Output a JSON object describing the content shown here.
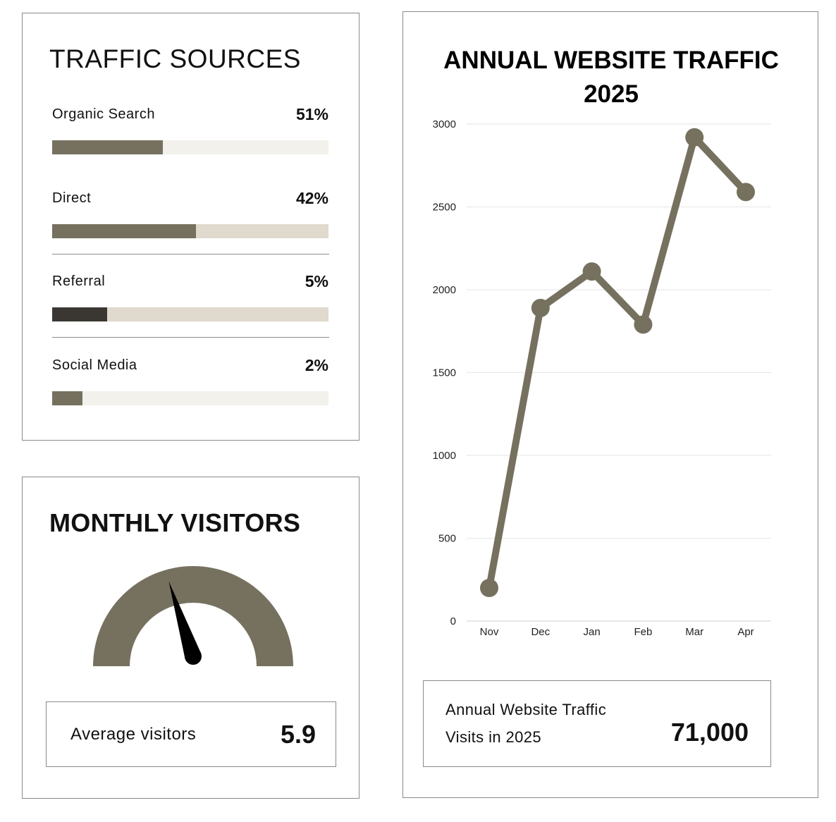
{
  "colors": {
    "primary": "#76715f",
    "dark": "#3a3733",
    "track_light": "#f2f1eb",
    "track_beige": "#e0d9cd",
    "needle": "#000000",
    "grid": "#e6e6e6"
  },
  "traffic_sources": {
    "title": "TRAFFIC SOURCES",
    "items": [
      {
        "label": "Organic Search",
        "value": "51%",
        "fill_fraction": 0.4,
        "fill_color": "#76715f",
        "track_color": "#f2f1eb"
      },
      {
        "label": "Direct",
        "value": "42%",
        "fill_fraction": 0.52,
        "fill_color": "#76715f",
        "track_color": "#e0d9cd"
      },
      {
        "label": "Referral",
        "value": "5%",
        "fill_fraction": 0.2,
        "fill_color": "#3a3733",
        "track_color": "#e0d9cd"
      },
      {
        "label": "Social Media",
        "value": "2%",
        "fill_fraction": 0.11,
        "fill_color": "#76715f",
        "track_color": "#f2f1eb"
      }
    ]
  },
  "monthly_visitors": {
    "title": "MONTHLY VISITORS",
    "gauge_level": 0.4,
    "average": {
      "label": "Average visitors",
      "value": "5.9"
    }
  },
  "chart_data": {
    "type": "line",
    "title": "ANNUAL WEBSITE TRAFFIC 2025",
    "title_lines": [
      "ANNUAL WEBSITE TRAFFIC",
      "2025"
    ],
    "categories": [
      "Nov",
      "Dec",
      "Jan",
      "Feb",
      "Mar",
      "Apr"
    ],
    "series": [
      {
        "values": [
          200,
          1890,
          2110,
          1790,
          2920,
          2590
        ]
      }
    ],
    "ylim": [
      0,
      3000
    ],
    "yticks": [
      0,
      500,
      1000,
      1500,
      2000,
      2500,
      3000
    ],
    "grid": true,
    "color": "#76715f"
  },
  "annual_stat": {
    "line1": "Annual Website Traffic",
    "line2": "Visits in 2025",
    "value": "71,000"
  }
}
